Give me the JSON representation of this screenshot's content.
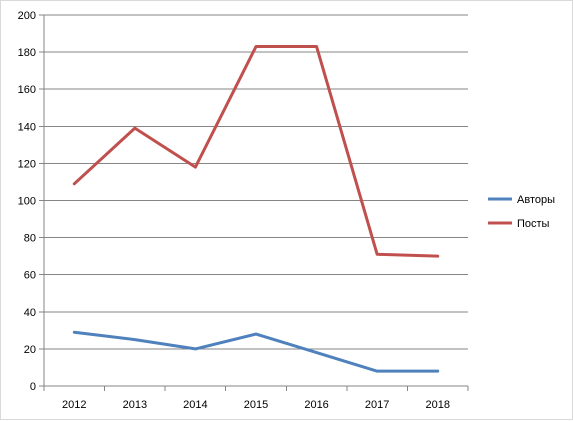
{
  "chart_data": {
    "type": "line",
    "title": "",
    "xlabel": "",
    "ylabel": "",
    "categories": [
      "2012",
      "2013",
      "2014",
      "2015",
      "2016",
      "2017",
      "2018"
    ],
    "ylim": [
      0,
      200
    ],
    "yticks": [
      0,
      20,
      40,
      60,
      80,
      100,
      120,
      140,
      160,
      180,
      200
    ],
    "grid": true,
    "legend_position": "right",
    "series": [
      {
        "name": "Авторы",
        "color": "#4f81bd",
        "values": [
          29,
          25,
          20,
          28,
          18,
          8,
          8
        ]
      },
      {
        "name": "Посты",
        "color": "#c0504d",
        "values": [
          109,
          139,
          118,
          183,
          183,
          71,
          70
        ]
      }
    ]
  }
}
